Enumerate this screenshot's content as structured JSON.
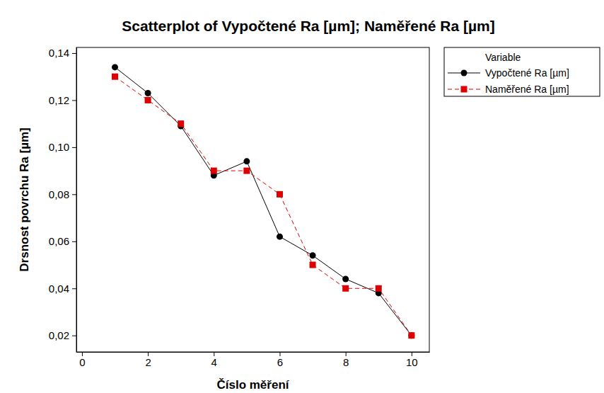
{
  "chart_data": {
    "type": "line",
    "title": "Scatterplot of Vypočtené Ra  [µm]; Naměřené Ra  [µm]",
    "x_label": "Číslo měření",
    "y_label": "Drsnost povrchu Ra [µm]",
    "legend_title": "Variable",
    "legend": "right",
    "grid": false,
    "x": [
      1,
      2,
      3,
      4,
      5,
      6,
      7,
      8,
      9,
      10
    ],
    "series": [
      {
        "name": "Vypočtené Ra  [µm]",
        "color": "#000000",
        "marker": "circle",
        "line_style": "solid",
        "values": [
          0.134,
          0.123,
          0.109,
          0.088,
          0.094,
          0.062,
          0.054,
          0.044,
          0.038,
          0.02
        ]
      },
      {
        "name": "Naměřené Ra  [µm]",
        "color": "#dd0000",
        "marker": "square",
        "line_style": "dashed",
        "values": [
          0.13,
          0.12,
          0.11,
          0.09,
          0.09,
          0.08,
          0.05,
          0.04,
          0.04,
          0.02
        ]
      }
    ],
    "xlim": [
      -0.17,
      10.54
    ],
    "xticks": [
      0,
      2,
      4,
      6,
      8,
      10
    ],
    "ylim": [
      0.013,
      0.1424
    ],
    "yticks": [
      {
        "value": 0.02,
        "label": "0,02"
      },
      {
        "value": 0.04,
        "label": "0,04"
      },
      {
        "value": 0.06,
        "label": "0,06"
      },
      {
        "value": 0.08,
        "label": "0,08"
      },
      {
        "value": 0.1,
        "label": "0,10"
      },
      {
        "value": 0.12,
        "label": "0,12"
      },
      {
        "value": 0.14,
        "label": "0,14"
      }
    ]
  }
}
